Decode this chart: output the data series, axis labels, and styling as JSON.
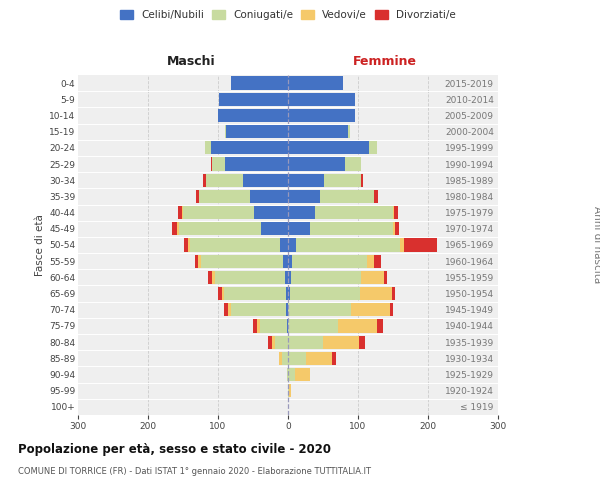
{
  "age_groups": [
    "100+",
    "95-99",
    "90-94",
    "85-89",
    "80-84",
    "75-79",
    "70-74",
    "65-69",
    "60-64",
    "55-59",
    "50-54",
    "45-49",
    "40-44",
    "35-39",
    "30-34",
    "25-29",
    "20-24",
    "15-19",
    "10-14",
    "5-9",
    "0-4"
  ],
  "birth_years": [
    "≤ 1919",
    "1920-1924",
    "1925-1929",
    "1930-1934",
    "1935-1939",
    "1940-1944",
    "1945-1949",
    "1950-1954",
    "1955-1959",
    "1960-1964",
    "1965-1969",
    "1970-1974",
    "1975-1979",
    "1980-1984",
    "1985-1989",
    "1990-1994",
    "1995-1999",
    "2000-2004",
    "2005-2009",
    "2010-2014",
    "2015-2019"
  ],
  "male_celibi": [
    0,
    0,
    0,
    0,
    0,
    2,
    3,
    3,
    5,
    7,
    12,
    38,
    48,
    55,
    65,
    90,
    110,
    88,
    100,
    98,
    82
  ],
  "male_coniugati": [
    0,
    0,
    2,
    8,
    18,
    38,
    78,
    88,
    100,
    118,
    128,
    118,
    102,
    72,
    52,
    18,
    8,
    2,
    0,
    0,
    0
  ],
  "male_vedovi": [
    0,
    0,
    0,
    5,
    5,
    5,
    5,
    4,
    4,
    3,
    3,
    2,
    2,
    0,
    0,
    0,
    0,
    0,
    0,
    0,
    0
  ],
  "male_divorziati": [
    0,
    0,
    0,
    0,
    5,
    5,
    5,
    5,
    5,
    5,
    5,
    8,
    5,
    5,
    5,
    2,
    0,
    0,
    0,
    0,
    0
  ],
  "female_nubili": [
    0,
    0,
    0,
    0,
    0,
    0,
    0,
    3,
    4,
    5,
    12,
    32,
    38,
    45,
    52,
    82,
    115,
    85,
    95,
    95,
    78
  ],
  "female_coniugate": [
    0,
    2,
    10,
    25,
    50,
    72,
    90,
    100,
    100,
    108,
    148,
    118,
    112,
    78,
    52,
    22,
    12,
    3,
    0,
    0,
    0
  ],
  "female_vedove": [
    0,
    2,
    22,
    38,
    52,
    55,
    55,
    45,
    33,
    10,
    5,
    3,
    2,
    0,
    0,
    0,
    0,
    0,
    0,
    0,
    0
  ],
  "female_divorziate": [
    0,
    0,
    0,
    5,
    8,
    8,
    5,
    5,
    5,
    10,
    48,
    5,
    5,
    5,
    3,
    0,
    0,
    0,
    0,
    0,
    0
  ],
  "color_celibi": "#4472C4",
  "color_coniugati": "#c8dba0",
  "color_vedovi": "#f5c96a",
  "color_divorziati": "#d9302e",
  "xlim": 300,
  "title": "Popolazione per età, sesso e stato civile - 2020",
  "subtitle": "COMUNE DI TORRICE (FR) - Dati ISTAT 1° gennaio 2020 - Elaborazione TUTTITALIA.IT",
  "ylabel_left": "Fasce di età",
  "ylabel_right": "Anni di nascita",
  "label_maschi": "Maschi",
  "label_femmine": "Femmine",
  "bg_color": "#efefef",
  "grid_color": "#cccccc",
  "legend_labels": [
    "Celibi/Nubili",
    "Coniugati/e",
    "Vedovi/e",
    "Divorziati/e"
  ]
}
